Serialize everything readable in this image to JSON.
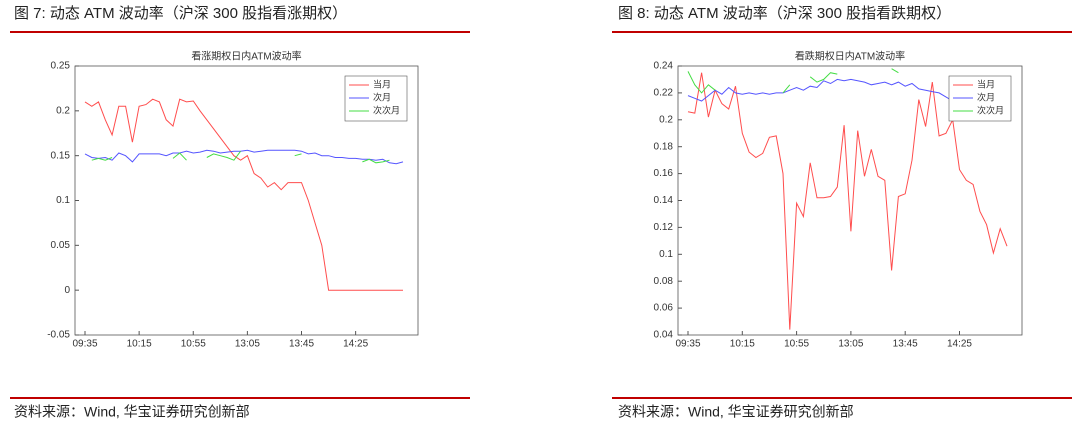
{
  "figures": [
    {
      "caption": "图 7: 动态 ATM 波动率（沪深 300 股指看涨期权）",
      "source": "资料来源：Wind, 华宝证券研究创新部"
    },
    {
      "caption": "图 8: 动态 ATM 波动率（沪深 300 股指看跌期权）",
      "source": "资料来源：Wind, 华宝证券研究创新部"
    }
  ],
  "chart_data": [
    {
      "type": "line",
      "title": "看涨期权日内ATM波动率",
      "legend": "upper right",
      "categories": [
        "09:35",
        null,
        null,
        null,
        null,
        null,
        null,
        null,
        "10:15",
        null,
        null,
        null,
        null,
        null,
        null,
        null,
        "10:55",
        null,
        null,
        null,
        null,
        null,
        null,
        null,
        "13:05",
        null,
        null,
        null,
        null,
        null,
        null,
        null,
        "13:45",
        null,
        null,
        null,
        null,
        null,
        null,
        null,
        "14:25",
        null,
        null,
        null,
        null,
        null,
        null,
        null
      ],
      "ylim": [
        -0.05,
        0.25
      ],
      "yticks": [
        -0.05,
        0,
        0.05,
        0.1,
        0.15,
        0.2,
        0.25
      ],
      "series": [
        {
          "name": "当月",
          "color": "#ff4d4d",
          "values": [
            0.21,
            0.205,
            0.21,
            0.19,
            0.173,
            0.205,
            0.205,
            0.165,
            0.205,
            0.207,
            0.213,
            0.21,
            0.19,
            0.183,
            0.213,
            0.21,
            0.211,
            0.2,
            0.19,
            0.18,
            0.17,
            0.16,
            0.15,
            0.145,
            0.15,
            0.13,
            0.125,
            0.115,
            0.12,
            0.112,
            0.12,
            0.12,
            0.12,
            0.1,
            0.075,
            0.05,
            0,
            0,
            0,
            0,
            0,
            0,
            0,
            0,
            0,
            0,
            0,
            0
          ]
        },
        {
          "name": "次月",
          "color": "#5555ff",
          "values": [
            0.152,
            0.148,
            0.147,
            0.148,
            0.145,
            0.153,
            0.15,
            0.143,
            0.152,
            0.152,
            0.152,
            0.152,
            0.15,
            0.153,
            0.153,
            0.155,
            0.153,
            0.154,
            0.156,
            0.155,
            0.153,
            0.154,
            0.155,
            0.155,
            0.156,
            0.154,
            0.155,
            0.156,
            0.156,
            0.156,
            0.156,
            0.156,
            0.155,
            0.152,
            0.153,
            0.15,
            0.15,
            0.148,
            0.148,
            0.147,
            0.147,
            0.146,
            0.146,
            0.145,
            0.146,
            0.142,
            0.141,
            0.143
          ]
        },
        {
          "name": "次次月",
          "color": "#44dd44",
          "values": [
            null,
            0.145,
            0.147,
            0.145,
            0.148,
            null,
            null,
            null,
            null,
            null,
            null,
            null,
            null,
            0.147,
            0.153,
            0.145,
            null,
            null,
            0.148,
            0.152,
            0.15,
            0.148,
            0.145,
            0.155,
            null,
            null,
            null,
            null,
            null,
            null,
            null,
            0.15,
            0.152,
            null,
            null,
            null,
            null,
            null,
            null,
            null,
            null,
            0.143,
            0.146,
            0.142,
            0.143,
            0.145,
            null,
            null
          ]
        }
      ]
    },
    {
      "type": "line",
      "title": "看跌期权日内ATM波动率",
      "legend": "upper right",
      "categories": [
        "09:35",
        null,
        null,
        null,
        null,
        null,
        null,
        null,
        "10:15",
        null,
        null,
        null,
        null,
        null,
        null,
        null,
        "10:55",
        null,
        null,
        null,
        null,
        null,
        null,
        null,
        "13:05",
        null,
        null,
        null,
        null,
        null,
        null,
        null,
        "13:45",
        null,
        null,
        null,
        null,
        null,
        null,
        null,
        "14:25",
        null,
        null,
        null,
        null,
        null,
        null,
        null
      ],
      "ylim": [
        0.04,
        0.24
      ],
      "yticks": [
        0.04,
        0.06,
        0.08,
        0.1,
        0.12,
        0.14,
        0.16,
        0.18,
        0.2,
        0.22,
        0.24
      ],
      "series": [
        {
          "name": "当月",
          "color": "#ff4d4d",
          "values": [
            0.206,
            0.205,
            0.235,
            0.202,
            0.222,
            0.212,
            0.208,
            0.225,
            0.19,
            0.176,
            0.172,
            0.175,
            0.187,
            0.188,
            0.16,
            0.044,
            0.138,
            0.128,
            0.168,
            0.142,
            0.142,
            0.143,
            0.15,
            0.196,
            0.117,
            0.192,
            0.158,
            0.178,
            0.158,
            0.155,
            0.088,
            0.143,
            0.145,
            0.17,
            0.215,
            0.195,
            0.228,
            0.188,
            0.19,
            0.2,
            0.163,
            0.155,
            0.152,
            0.132,
            0.122,
            0.101,
            0.119,
            0.106
          ]
        },
        {
          "name": "次月",
          "color": "#5555ff",
          "values": [
            0.218,
            0.216,
            0.214,
            0.218,
            0.222,
            0.219,
            0.224,
            0.22,
            0.219,
            0.22,
            0.219,
            0.22,
            0.219,
            0.22,
            0.22,
            0.222,
            0.224,
            0.222,
            0.225,
            0.224,
            0.229,
            0.227,
            0.23,
            0.229,
            0.23,
            0.229,
            0.228,
            0.226,
            0.227,
            0.228,
            0.226,
            0.228,
            0.225,
            0.227,
            0.223,
            0.222,
            0.221,
            0.22,
            0.217,
            0.214,
            0.216,
            0.219,
            0.219,
            0.218,
            0.219,
            0.218,
            0.22,
            0.219
          ]
        },
        {
          "name": "次次月",
          "color": "#44dd44",
          "values": [
            0.236,
            0.226,
            0.22,
            0.226,
            0.222,
            null,
            null,
            null,
            null,
            null,
            null,
            null,
            null,
            null,
            0.22,
            0.226,
            null,
            null,
            0.232,
            0.228,
            0.23,
            0.235,
            0.234,
            null,
            null,
            null,
            null,
            null,
            null,
            null,
            0.238,
            0.235,
            null,
            null,
            null,
            null,
            null,
            null,
            null,
            null,
            null,
            null,
            null,
            null,
            null,
            null,
            null,
            null
          ]
        }
      ]
    }
  ]
}
